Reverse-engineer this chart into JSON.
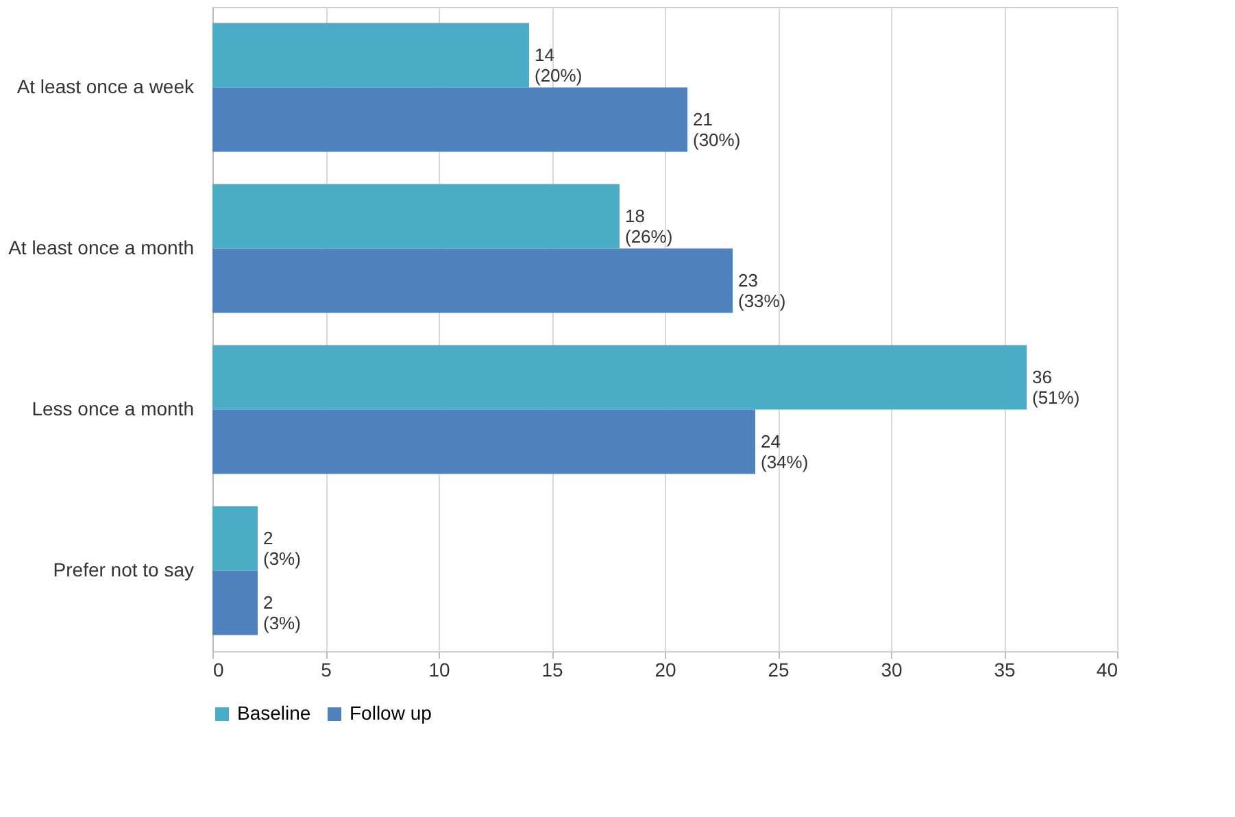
{
  "chart_data": {
    "type": "bar",
    "orientation": "horizontal",
    "categories": [
      "At least once a week",
      "At least once a month",
      "Less once a month",
      "Prefer not to say"
    ],
    "series": [
      {
        "name": "Baseline",
        "color": "#4bacc6",
        "values": [
          14,
          18,
          36,
          2
        ],
        "value_labels": [
          "14 (20%)",
          "18 (26%)",
          "36 (51%)",
          "2 (3%)"
        ]
      },
      {
        "name": "Follow up",
        "color": "#4f81bd",
        "values": [
          21,
          23,
          24,
          2
        ],
        "value_labels": [
          "21 (30%)",
          "23 (33%)",
          "24 (34%)",
          "2 (3%)"
        ]
      }
    ],
    "xlim": [
      0,
      40
    ],
    "xticks": [
      0,
      5,
      10,
      15,
      20,
      25,
      30,
      35,
      40
    ],
    "grid": "x",
    "legend": "bottom"
  }
}
